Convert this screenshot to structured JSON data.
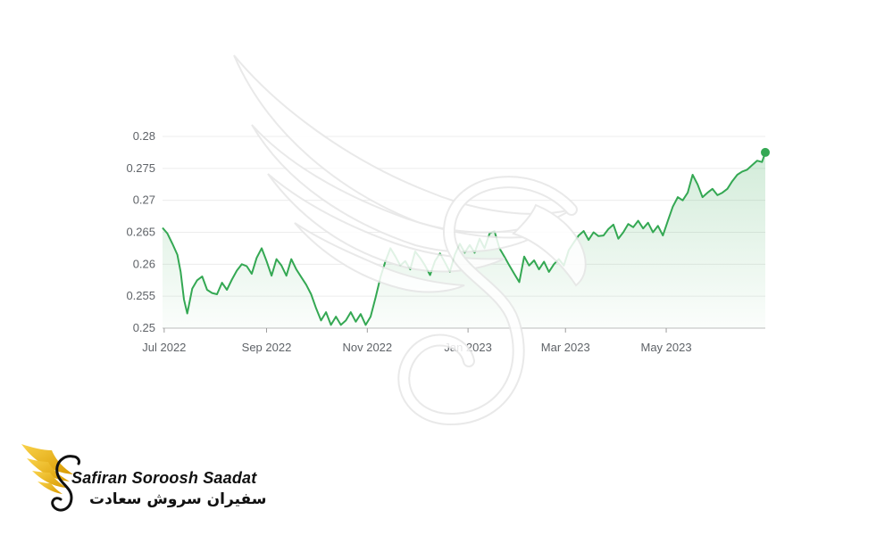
{
  "brand": {
    "name_en": "Safiran Soroosh Saadat",
    "name_fa": "سفیران سروش سعادت",
    "logo_icon": "golden-wing-swan-icon",
    "watermark_icon": "winged-swan-watermark-icon",
    "logo_color": "#f5b800"
  },
  "chart_data": {
    "type": "line",
    "title": "",
    "xlabel": "",
    "ylabel": "",
    "y_ticks": [
      "0.25",
      "0.255",
      "0.26",
      "0.265",
      "0.27",
      "0.275",
      "0.28"
    ],
    "ylim": [
      0.25,
      0.28
    ],
    "x_tick_labels": [
      "Jul 2022",
      "Sep 2022",
      "Nov 2022",
      "Jan 2023",
      "Mar 2023",
      "May 2023"
    ],
    "x_tick_dates": [
      "2022-07-01",
      "2022-09-01",
      "2022-11-01",
      "2023-01-01",
      "2023-03-01",
      "2023-05-01"
    ],
    "xlim": [
      "2022-06-30",
      "2023-06-30"
    ],
    "grid": true,
    "line_color": "#34a853",
    "fill_color": "#34a853",
    "x": [
      "2022-06-30",
      "2022-07-03",
      "2022-07-06",
      "2022-07-09",
      "2022-07-11",
      "2022-07-13",
      "2022-07-15",
      "2022-07-18",
      "2022-07-21",
      "2022-07-24",
      "2022-07-27",
      "2022-07-30",
      "2022-08-02",
      "2022-08-05",
      "2022-08-08",
      "2022-08-11",
      "2022-08-14",
      "2022-08-17",
      "2022-08-20",
      "2022-08-23",
      "2022-08-26",
      "2022-08-29",
      "2022-09-01",
      "2022-09-04",
      "2022-09-07",
      "2022-09-10",
      "2022-09-13",
      "2022-09-16",
      "2022-09-19",
      "2022-09-22",
      "2022-09-25",
      "2022-09-28",
      "2022-10-01",
      "2022-10-04",
      "2022-10-07",
      "2022-10-10",
      "2022-10-13",
      "2022-10-16",
      "2022-10-19",
      "2022-10-22",
      "2022-10-25",
      "2022-10-28",
      "2022-10-31",
      "2022-11-03",
      "2022-11-06",
      "2022-11-09",
      "2022-11-12",
      "2022-11-15",
      "2022-11-18",
      "2022-11-21",
      "2022-11-24",
      "2022-11-27",
      "2022-11-30",
      "2022-12-03",
      "2022-12-06",
      "2022-12-09",
      "2022-12-12",
      "2022-12-15",
      "2022-12-18",
      "2022-12-21",
      "2022-12-24",
      "2022-12-27",
      "2022-12-30",
      "2023-01-02",
      "2023-01-05",
      "2023-01-08",
      "2023-01-11",
      "2023-01-14",
      "2023-01-17",
      "2023-01-20",
      "2023-01-23",
      "2023-01-26",
      "2023-01-29",
      "2023-02-01",
      "2023-02-04",
      "2023-02-07",
      "2023-02-10",
      "2023-02-13",
      "2023-02-16",
      "2023-02-19",
      "2023-02-22",
      "2023-02-25",
      "2023-02-28",
      "2023-03-03",
      "2023-03-06",
      "2023-03-09",
      "2023-03-12",
      "2023-03-15",
      "2023-03-18",
      "2023-03-21",
      "2023-03-24",
      "2023-03-27",
      "2023-03-30",
      "2023-04-02",
      "2023-04-05",
      "2023-04-08",
      "2023-04-11",
      "2023-04-14",
      "2023-04-17",
      "2023-04-20",
      "2023-04-23",
      "2023-04-26",
      "2023-04-29",
      "2023-05-02",
      "2023-05-05",
      "2023-05-08",
      "2023-05-11",
      "2023-05-14",
      "2023-05-17",
      "2023-05-20",
      "2023-05-23",
      "2023-05-26",
      "2023-05-29",
      "2023-06-01",
      "2023-06-04",
      "2023-06-07",
      "2023-06-10",
      "2023-06-13",
      "2023-06-16",
      "2023-06-19",
      "2023-06-22",
      "2023-06-25",
      "2023-06-28",
      "2023-06-30"
    ],
    "series": [
      {
        "values": [
          0.2657,
          0.2648,
          0.2632,
          0.2615,
          0.2588,
          0.2545,
          0.2523,
          0.2562,
          0.2575,
          0.2581,
          0.256,
          0.2555,
          0.2553,
          0.2571,
          0.256,
          0.2576,
          0.259,
          0.26,
          0.2597,
          0.2585,
          0.261,
          0.2625,
          0.2605,
          0.2582,
          0.2608,
          0.2598,
          0.2582,
          0.2608,
          0.2592,
          0.258,
          0.2568,
          0.2553,
          0.2531,
          0.2512,
          0.2525,
          0.2505,
          0.2518,
          0.2505,
          0.2512,
          0.2525,
          0.251,
          0.2522,
          0.2505,
          0.2518,
          0.2548,
          0.258,
          0.2605,
          0.2625,
          0.2612,
          0.2598,
          0.2605,
          0.2592,
          0.262,
          0.261,
          0.2598,
          0.2583,
          0.2605,
          0.2617,
          0.2603,
          0.2588,
          0.2615,
          0.2632,
          0.2618,
          0.263,
          0.2618,
          0.264,
          0.2625,
          0.2648,
          0.2652,
          0.2625,
          0.2612,
          0.2598,
          0.2585,
          0.2572,
          0.2612,
          0.2598,
          0.2606,
          0.2592,
          0.2604,
          0.2588,
          0.26,
          0.2608,
          0.2598,
          0.2622,
          0.2634,
          0.2645,
          0.2652,
          0.2638,
          0.265,
          0.2644,
          0.2645,
          0.2655,
          0.2662,
          0.264,
          0.265,
          0.2663,
          0.2658,
          0.2668,
          0.2656,
          0.2665,
          0.265,
          0.266,
          0.2645,
          0.2668,
          0.269,
          0.2705,
          0.27,
          0.2712,
          0.274,
          0.2725,
          0.2705,
          0.2712,
          0.2718,
          0.2708,
          0.2712,
          0.2718,
          0.273,
          0.274,
          0.2745,
          0.2748,
          0.2755,
          0.2762,
          0.276,
          0.2775
        ]
      }
    ]
  }
}
